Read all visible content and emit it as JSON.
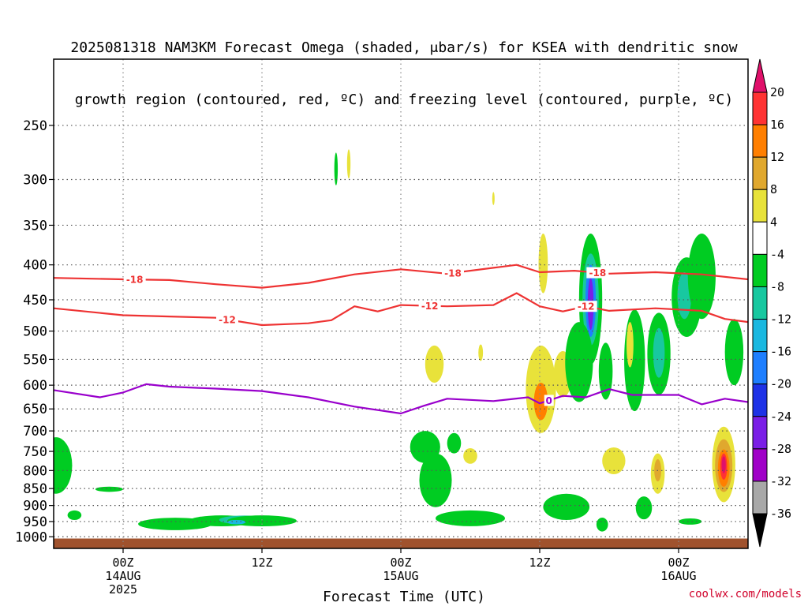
{
  "chart_data": {
    "type": "heatmap",
    "title_lines": [
      "2025081318 NAM3KM Forecast Omega (shaded, μbar/s) for KSEA with dendritic snow",
      "growth region (contoured, red, ºC) and freezing level (contoured, purple, ºC)"
    ],
    "xlabel": "Forecast Time (UTC)",
    "x_range_hours": [
      -6,
      54
    ],
    "x_ticks": [
      {
        "hour": 0,
        "lines": [
          "00Z",
          "14AUG",
          "2025"
        ]
      },
      {
        "hour": 12,
        "lines": [
          "12Z"
        ]
      },
      {
        "hour": 24,
        "lines": [
          "00Z",
          "15AUG"
        ]
      },
      {
        "hour": 36,
        "lines": [
          "12Z"
        ]
      },
      {
        "hour": 48,
        "lines": [
          "00Z",
          "16AUG"
        ]
      }
    ],
    "y_axis": {
      "ticks": [
        250,
        300,
        350,
        400,
        450,
        500,
        550,
        600,
        650,
        700,
        750,
        800,
        850,
        900,
        950,
        1000
      ],
      "top_hpa": 200,
      "bottom_hpa": 1040,
      "scale": "log-pressure"
    },
    "colorbar": {
      "labels": [
        "20",
        "16",
        "12",
        "8",
        "4",
        "-4",
        "-8",
        "-12",
        "-16",
        "-20",
        "-24",
        "-28",
        "-32",
        "-36"
      ],
      "bins": [
        {
          "color": "#ff3333"
        },
        {
          "color": "#ff7f00"
        },
        {
          "color": "#e0a82e"
        },
        {
          "color": "#e8e23a"
        },
        {
          "color": "#ffffff"
        },
        {
          "color": "#00cc22"
        },
        {
          "color": "#18c8a0"
        },
        {
          "color": "#1ab8e0"
        },
        {
          "color": "#1e7fff"
        },
        {
          "color": "#1e32e6"
        },
        {
          "color": "#7a1ee6"
        },
        {
          "color": "#a000c8"
        },
        {
          "color": "#a8a8a8"
        }
      ],
      "top_arrow_color": "#e0106a",
      "bottom_arrow_color": "#000000"
    },
    "contours": [
      {
        "value": -18,
        "label": "-18",
        "color": "#ee3333",
        "points": [
          [
            -6,
            418
          ],
          [
            0,
            420
          ],
          [
            4,
            421
          ],
          [
            8,
            427
          ],
          [
            12,
            432
          ],
          [
            16,
            425
          ],
          [
            20,
            413
          ],
          [
            24,
            406
          ],
          [
            28,
            412
          ],
          [
            32,
            404
          ],
          [
            34,
            400
          ],
          [
            36,
            410
          ],
          [
            39,
            408
          ],
          [
            42,
            412
          ],
          [
            46,
            410
          ],
          [
            50,
            413
          ],
          [
            54,
            420
          ]
        ],
        "label_hours": [
          1,
          28.5,
          41
        ]
      },
      {
        "value": -12,
        "label": "-12",
        "color": "#ee3333",
        "points": [
          [
            -6,
            463
          ],
          [
            0,
            474
          ],
          [
            4,
            476
          ],
          [
            8,
            478
          ],
          [
            12,
            490
          ],
          [
            16,
            487
          ],
          [
            18,
            482
          ],
          [
            20,
            460
          ],
          [
            22,
            468
          ],
          [
            24,
            458
          ],
          [
            28,
            460
          ],
          [
            32,
            458
          ],
          [
            34,
            440
          ],
          [
            36,
            460
          ],
          [
            38,
            468
          ],
          [
            40,
            460
          ],
          [
            42,
            467
          ],
          [
            46,
            463
          ],
          [
            50,
            467
          ],
          [
            52,
            480
          ],
          [
            54,
            485
          ]
        ],
        "label_hours": [
          9,
          26.5,
          40
        ]
      },
      {
        "value": 0,
        "label": "0",
        "color": "#9900cc",
        "points": [
          [
            -6,
            610
          ],
          [
            -2,
            625
          ],
          [
            0,
            615
          ],
          [
            2,
            598
          ],
          [
            4,
            603
          ],
          [
            8,
            607
          ],
          [
            12,
            612
          ],
          [
            16,
            625
          ],
          [
            20,
            645
          ],
          [
            24,
            660
          ],
          [
            26,
            643
          ],
          [
            28,
            628
          ],
          [
            32,
            633
          ],
          [
            35,
            625
          ],
          [
            36,
            638
          ],
          [
            38,
            622
          ],
          [
            40,
            625
          ],
          [
            42,
            608
          ],
          [
            44,
            620
          ],
          [
            48,
            620
          ],
          [
            50,
            640
          ],
          [
            52,
            628
          ],
          [
            54,
            635
          ]
        ],
        "label_hours": [
          36.8
        ]
      }
    ],
    "omega_features": [
      {
        "t": -5.8,
        "p": 790,
        "w": 1.4,
        "h": 150,
        "v": -6
      },
      {
        "t": -4.2,
        "p": 930,
        "w": 0.6,
        "h": 30,
        "v": -6
      },
      {
        "t": -1.2,
        "p": 852,
        "w": 1.2,
        "h": 15,
        "v": -6
      },
      {
        "t": 4.5,
        "p": 958,
        "w": 3.2,
        "h": 40,
        "v": -6
      },
      {
        "t": 8.5,
        "p": 948,
        "w": 2.8,
        "h": 35,
        "v": -6
      },
      {
        "t": 10.5,
        "p": 945,
        "w": 2.2,
        "h": 28,
        "v": -10
      },
      {
        "t": 12.0,
        "p": 948,
        "w": 3.0,
        "h": 35,
        "v": -6
      },
      {
        "t": 9.8,
        "p": 952,
        "w": 0.8,
        "h": 14,
        "v": -14
      },
      {
        "t": 18.4,
        "p": 290,
        "w": 0.15,
        "h": 32,
        "v": -6
      },
      {
        "t": 19.5,
        "p": 285,
        "w": 0.15,
        "h": 28,
        "v": 6
      },
      {
        "t": 26.1,
        "p": 740,
        "w": 1.3,
        "h": 80,
        "v": -8
      },
      {
        "t": 27.0,
        "p": 830,
        "w": 1.4,
        "h": 150,
        "v": -6
      },
      {
        "t": 30.0,
        "p": 940,
        "w": 3.0,
        "h": 50,
        "v": -6
      },
      {
        "t": 28.6,
        "p": 730,
        "w": 0.6,
        "h": 50,
        "v": -6
      },
      {
        "t": 26.9,
        "p": 560,
        "w": 0.8,
        "h": 70,
        "v": 6
      },
      {
        "t": 30.0,
        "p": 762,
        "w": 0.6,
        "h": 40,
        "v": 6
      },
      {
        "t": 32.0,
        "p": 320,
        "w": 0.1,
        "h": 14,
        "v": 6
      },
      {
        "t": 30.9,
        "p": 538,
        "w": 0.2,
        "h": 30,
        "v": 6
      },
      {
        "t": 36.3,
        "p": 400,
        "w": 0.4,
        "h": 80,
        "v": 6
      },
      {
        "t": 36.1,
        "p": 615,
        "w": 1.3,
        "h": 180,
        "v": 6
      },
      {
        "t": 36.1,
        "p": 635,
        "w": 0.6,
        "h": 80,
        "v": 14
      },
      {
        "t": 38.0,
        "p": 580,
        "w": 0.8,
        "h": 90,
        "v": 6
      },
      {
        "t": 38.3,
        "p": 905,
        "w": 2.0,
        "h": 80,
        "v": -6
      },
      {
        "t": 40.4,
        "p": 460,
        "w": 1.0,
        "h": 200,
        "v": -6
      },
      {
        "t": 40.4,
        "p": 455,
        "w": 0.7,
        "h": 140,
        "v": -12
      },
      {
        "t": 40.4,
        "p": 455,
        "w": 0.45,
        "h": 110,
        "v": -20
      },
      {
        "t": 40.4,
        "p": 458,
        "w": 0.25,
        "h": 80,
        "v": -28
      },
      {
        "t": 39.4,
        "p": 560,
        "w": 1.2,
        "h": 150,
        "v": -6
      },
      {
        "t": 41.7,
        "p": 575,
        "w": 0.6,
        "h": 110,
        "v": -6
      },
      {
        "t": 41.4,
        "p": 960,
        "w": 0.5,
        "h": 45,
        "v": -6
      },
      {
        "t": 42.4,
        "p": 775,
        "w": 1.0,
        "h": 70,
        "v": 6
      },
      {
        "t": 44.2,
        "p": 560,
        "w": 0.9,
        "h": 190,
        "v": -6
      },
      {
        "t": 43.8,
        "p": 525,
        "w": 0.3,
        "h": 80,
        "v": 6
      },
      {
        "t": 46.3,
        "p": 545,
        "w": 1.0,
        "h": 150,
        "v": -6
      },
      {
        "t": 46.3,
        "p": 540,
        "w": 0.5,
        "h": 90,
        "v": -10
      },
      {
        "t": 45.0,
        "p": 908,
        "w": 0.7,
        "h": 70,
        "v": -6
      },
      {
        "t": 46.2,
        "p": 810,
        "w": 0.6,
        "h": 110,
        "v": 6
      },
      {
        "t": 46.2,
        "p": 800,
        "w": 0.3,
        "h": 60,
        "v": 10
      },
      {
        "t": 48.7,
        "p": 450,
        "w": 1.3,
        "h": 120,
        "v": -6
      },
      {
        "t": 48.5,
        "p": 445,
        "w": 0.6,
        "h": 70,
        "v": -12
      },
      {
        "t": 50.0,
        "p": 420,
        "w": 1.2,
        "h": 120,
        "v": -6
      },
      {
        "t": 49.0,
        "p": 950,
        "w": 1.0,
        "h": 20,
        "v": -6
      },
      {
        "t": 52.8,
        "p": 540,
        "w": 0.8,
        "h": 120,
        "v": -6
      },
      {
        "t": 51.9,
        "p": 790,
        "w": 1.0,
        "h": 200,
        "v": 6
      },
      {
        "t": 51.9,
        "p": 790,
        "w": 0.75,
        "h": 140,
        "v": 10
      },
      {
        "t": 51.9,
        "p": 795,
        "w": 0.5,
        "h": 100,
        "v": 14
      },
      {
        "t": 51.9,
        "p": 790,
        "w": 0.3,
        "h": 70,
        "v": 18
      },
      {
        "t": 51.9,
        "p": 785,
        "w": 0.18,
        "h": 45,
        "v": 21
      }
    ],
    "terrain": {
      "color": "#a0522d",
      "from_hpa": 1006
    }
  },
  "credit": "coolwx.com/models"
}
